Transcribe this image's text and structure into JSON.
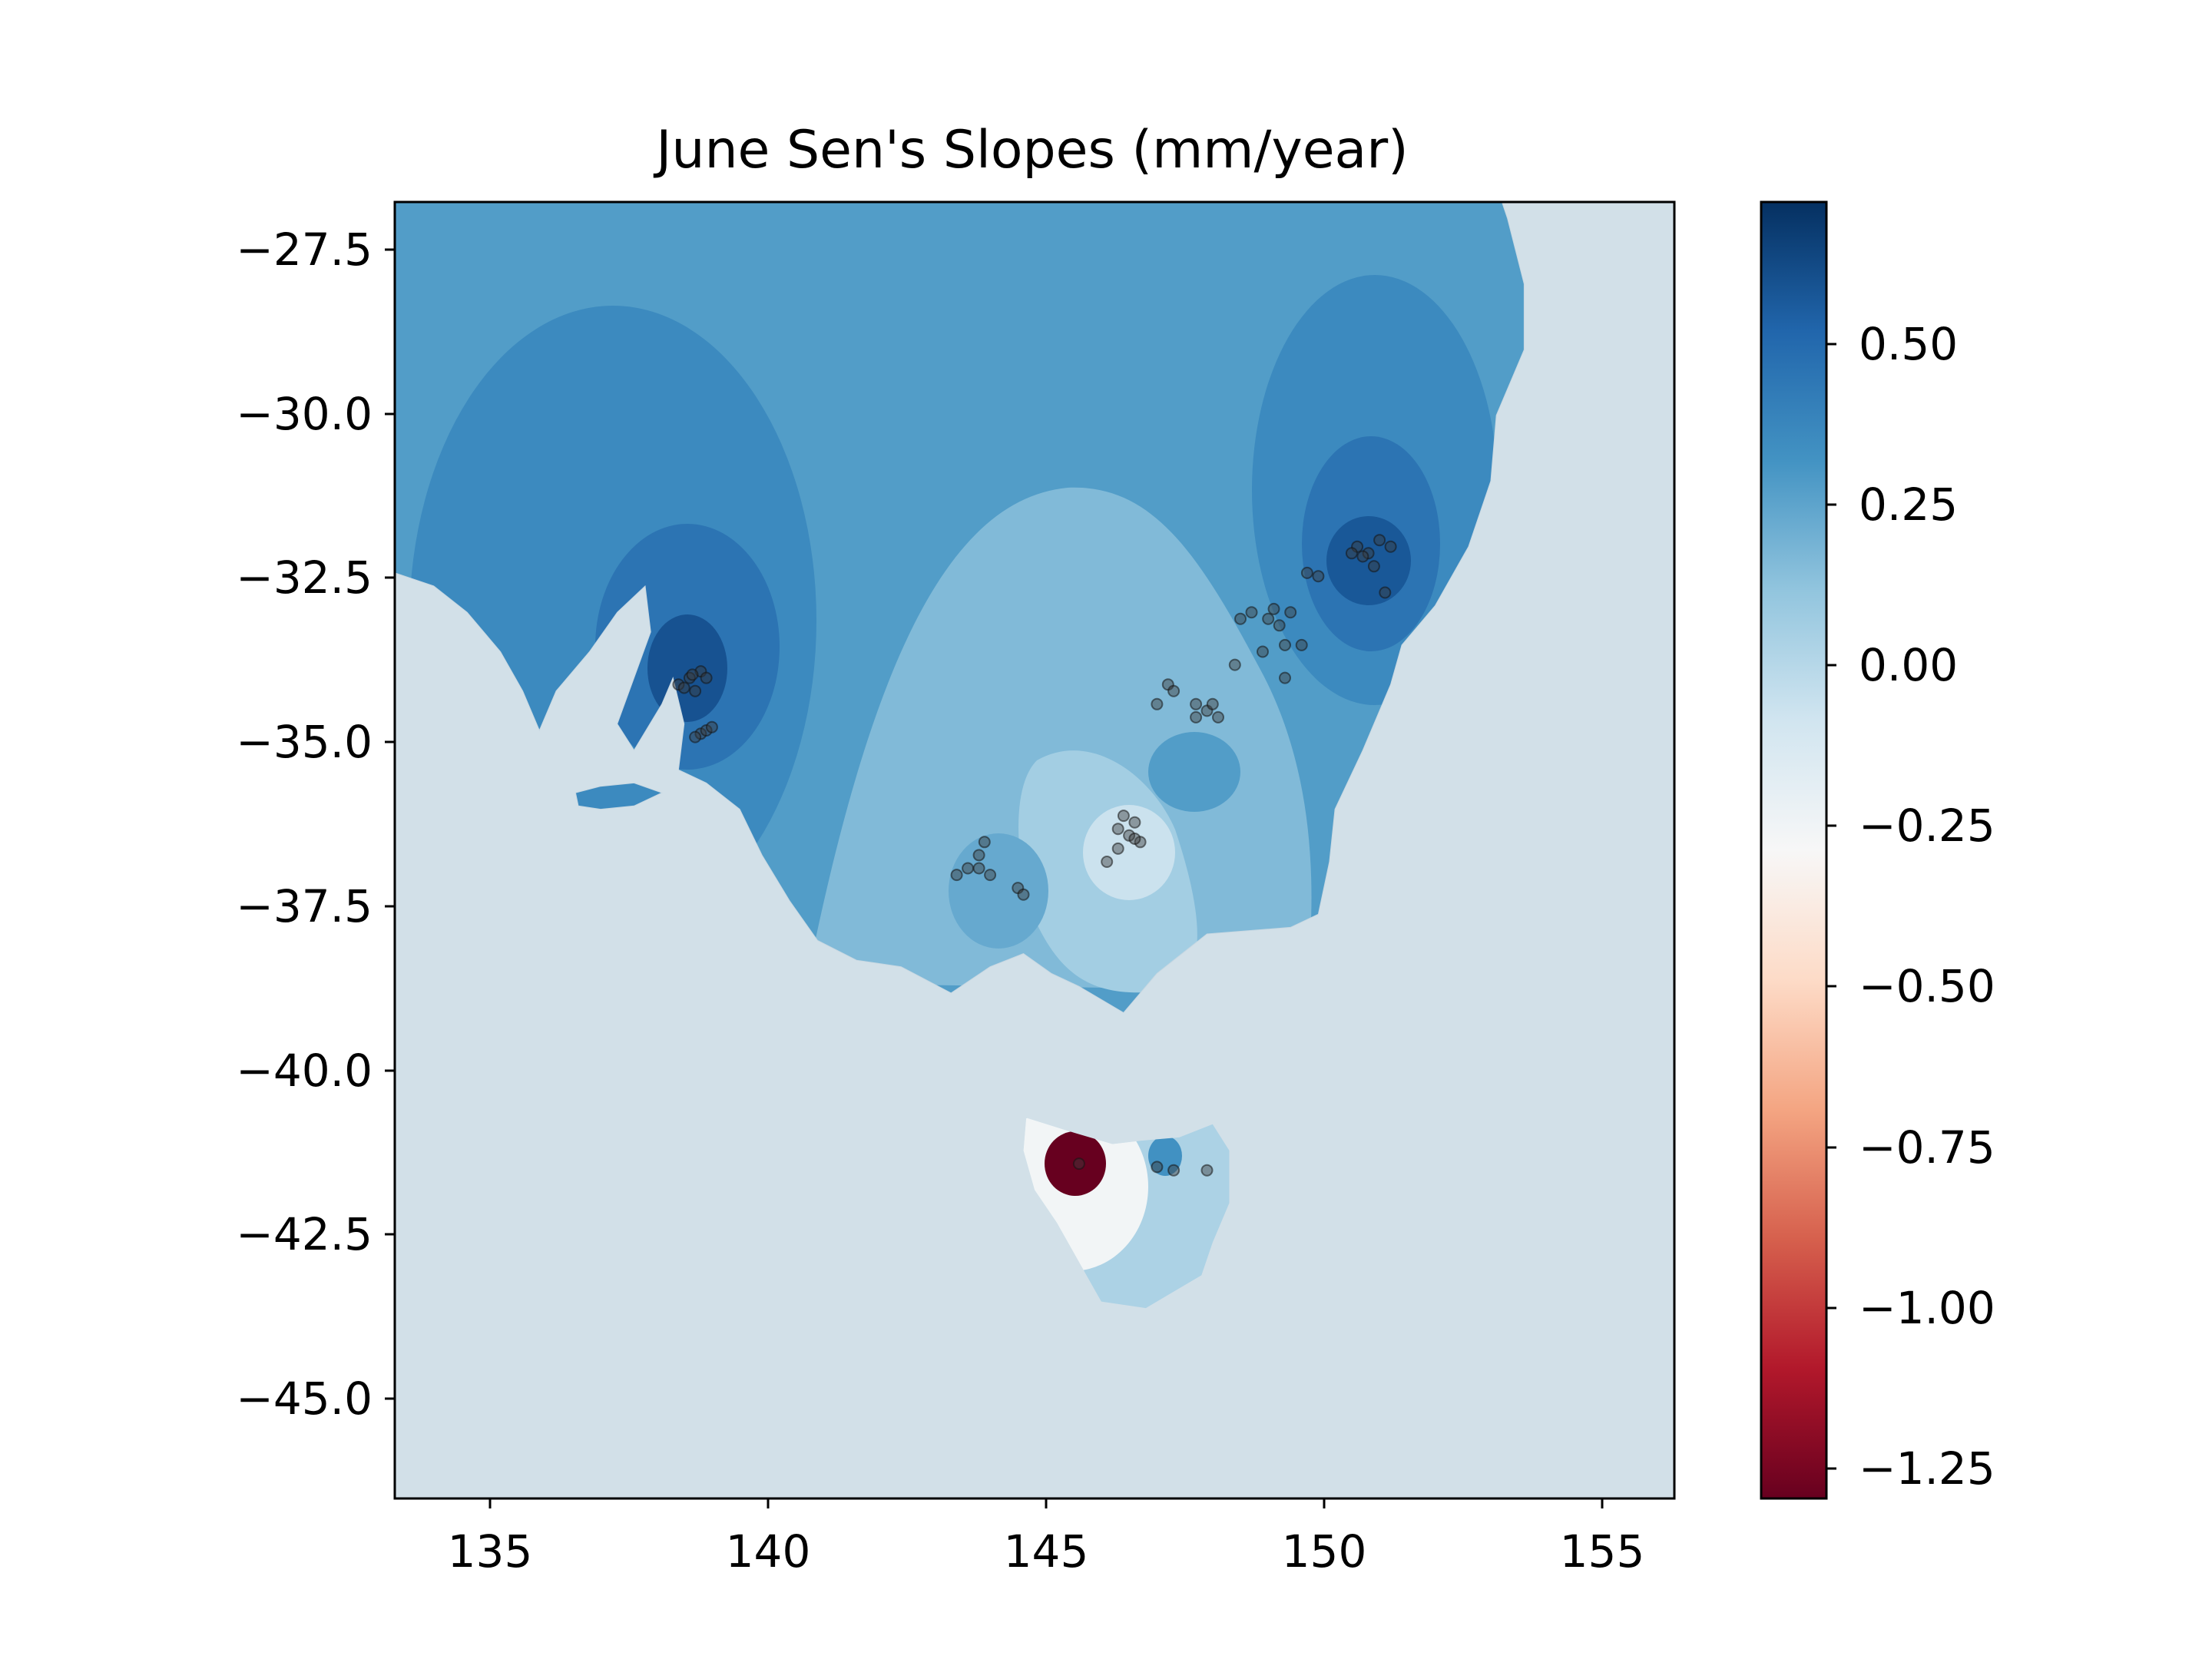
{
  "chart_data": {
    "type": "heatmap",
    "title": "June Sen's Slopes (mm/year)",
    "xlabel": "",
    "ylabel": "",
    "xlim": [
      133.3,
      156.3
    ],
    "ylim": [
      -46.5,
      -26.75
    ],
    "x_ticks": [
      "135",
      "140",
      "145",
      "150",
      "155"
    ],
    "y_ticks": [
      "−27.5",
      "−30.0",
      "−32.5",
      "−35.0",
      "−37.5",
      "−40.0",
      "−42.5",
      "−45.0"
    ],
    "colorbar": {
      "cmap": "RdBu",
      "range": [
        -1.3,
        0.75
      ],
      "ticks": [
        "0.50",
        "0.25",
        "0.00",
        "−0.25",
        "−0.50",
        "−0.75",
        "−1.00",
        "−1.25"
      ]
    },
    "background_color": "#d2e0e8",
    "grid": false,
    "regions": [
      {
        "name": "mainland-base",
        "value": 0.3
      },
      {
        "name": "sa-outer-ellipse",
        "value": 0.38
      },
      {
        "name": "sa-inner-lobe",
        "value": 0.48
      },
      {
        "name": "sa-core",
        "value": 0.62
      },
      {
        "name": "nsw-outer-ellipse",
        "value": 0.38
      },
      {
        "name": "nsw-inner-lobe",
        "value": 0.48
      },
      {
        "name": "nsw-core",
        "value": 0.6
      },
      {
        "name": "central-trough",
        "value": 0.18
      },
      {
        "name": "victoria-low",
        "value": 0.08
      },
      {
        "name": "victoria-core",
        "value": -0.05
      },
      {
        "name": "western-vic-cell",
        "value": 0.25
      },
      {
        "name": "canberra-cell",
        "value": 0.3
      },
      {
        "name": "tasmania-base",
        "value": 0.05
      },
      {
        "name": "tasmania-west",
        "value": -0.25
      },
      {
        "name": "tasmania-hotspot",
        "value": -1.3
      },
      {
        "name": "tasmania-east-cell",
        "value": 0.35
      }
    ],
    "stations": [
      [
        138.6,
        -34.0
      ],
      [
        138.8,
        -33.9
      ],
      [
        138.4,
        -34.1
      ],
      [
        138.7,
        -34.2
      ],
      [
        138.9,
        -34.0
      ],
      [
        138.5,
        -34.15
      ],
      [
        138.65,
        -33.95
      ],
      [
        138.8,
        -34.85
      ],
      [
        138.9,
        -34.8
      ],
      [
        138.7,
        -34.9
      ],
      [
        139.0,
        -34.75
      ],
      [
        150.6,
        -32.0
      ],
      [
        150.8,
        -32.1
      ],
      [
        150.9,
        -32.3
      ],
      [
        150.5,
        -32.1
      ],
      [
        151.0,
        -31.9
      ],
      [
        151.2,
        -32.0
      ],
      [
        150.7,
        -32.15
      ],
      [
        149.7,
        -32.4
      ],
      [
        149.9,
        -32.45
      ],
      [
        151.1,
        -32.7
      ],
      [
        148.5,
        -33.1
      ],
      [
        148.7,
        -33.0
      ],
      [
        149.0,
        -33.1
      ],
      [
        149.2,
        -33.2
      ],
      [
        149.4,
        -33.0
      ],
      [
        149.1,
        -32.95
      ],
      [
        149.3,
        -33.5
      ],
      [
        149.6,
        -33.5
      ],
      [
        148.9,
        -33.6
      ],
      [
        148.4,
        -33.8
      ],
      [
        149.3,
        -34.0
      ],
      [
        147.2,
        -34.1
      ],
      [
        147.3,
        -34.2
      ],
      [
        147.7,
        -34.4
      ],
      [
        147.9,
        -34.5
      ],
      [
        148.0,
        -34.4
      ],
      [
        148.1,
        -34.6
      ],
      [
        147.7,
        -34.6
      ],
      [
        147.0,
        -34.4
      ],
      [
        143.9,
        -36.5
      ],
      [
        143.8,
        -36.7
      ],
      [
        143.6,
        -36.9
      ],
      [
        143.8,
        -36.9
      ],
      [
        144.0,
        -37.0
      ],
      [
        143.4,
        -37.0
      ],
      [
        144.5,
        -37.2
      ],
      [
        144.6,
        -37.3
      ],
      [
        146.4,
        -36.1
      ],
      [
        146.6,
        -36.2
      ],
      [
        146.3,
        -36.3
      ],
      [
        146.7,
        -36.5
      ],
      [
        146.5,
        -36.4
      ],
      [
        146.3,
        -36.6
      ],
      [
        146.6,
        -36.45
      ],
      [
        146.1,
        -36.8
      ],
      [
        145.6,
        -41.4
      ],
      [
        147.0,
        -41.45
      ],
      [
        147.3,
        -41.5
      ],
      [
        147.9,
        -41.5
      ]
    ]
  }
}
